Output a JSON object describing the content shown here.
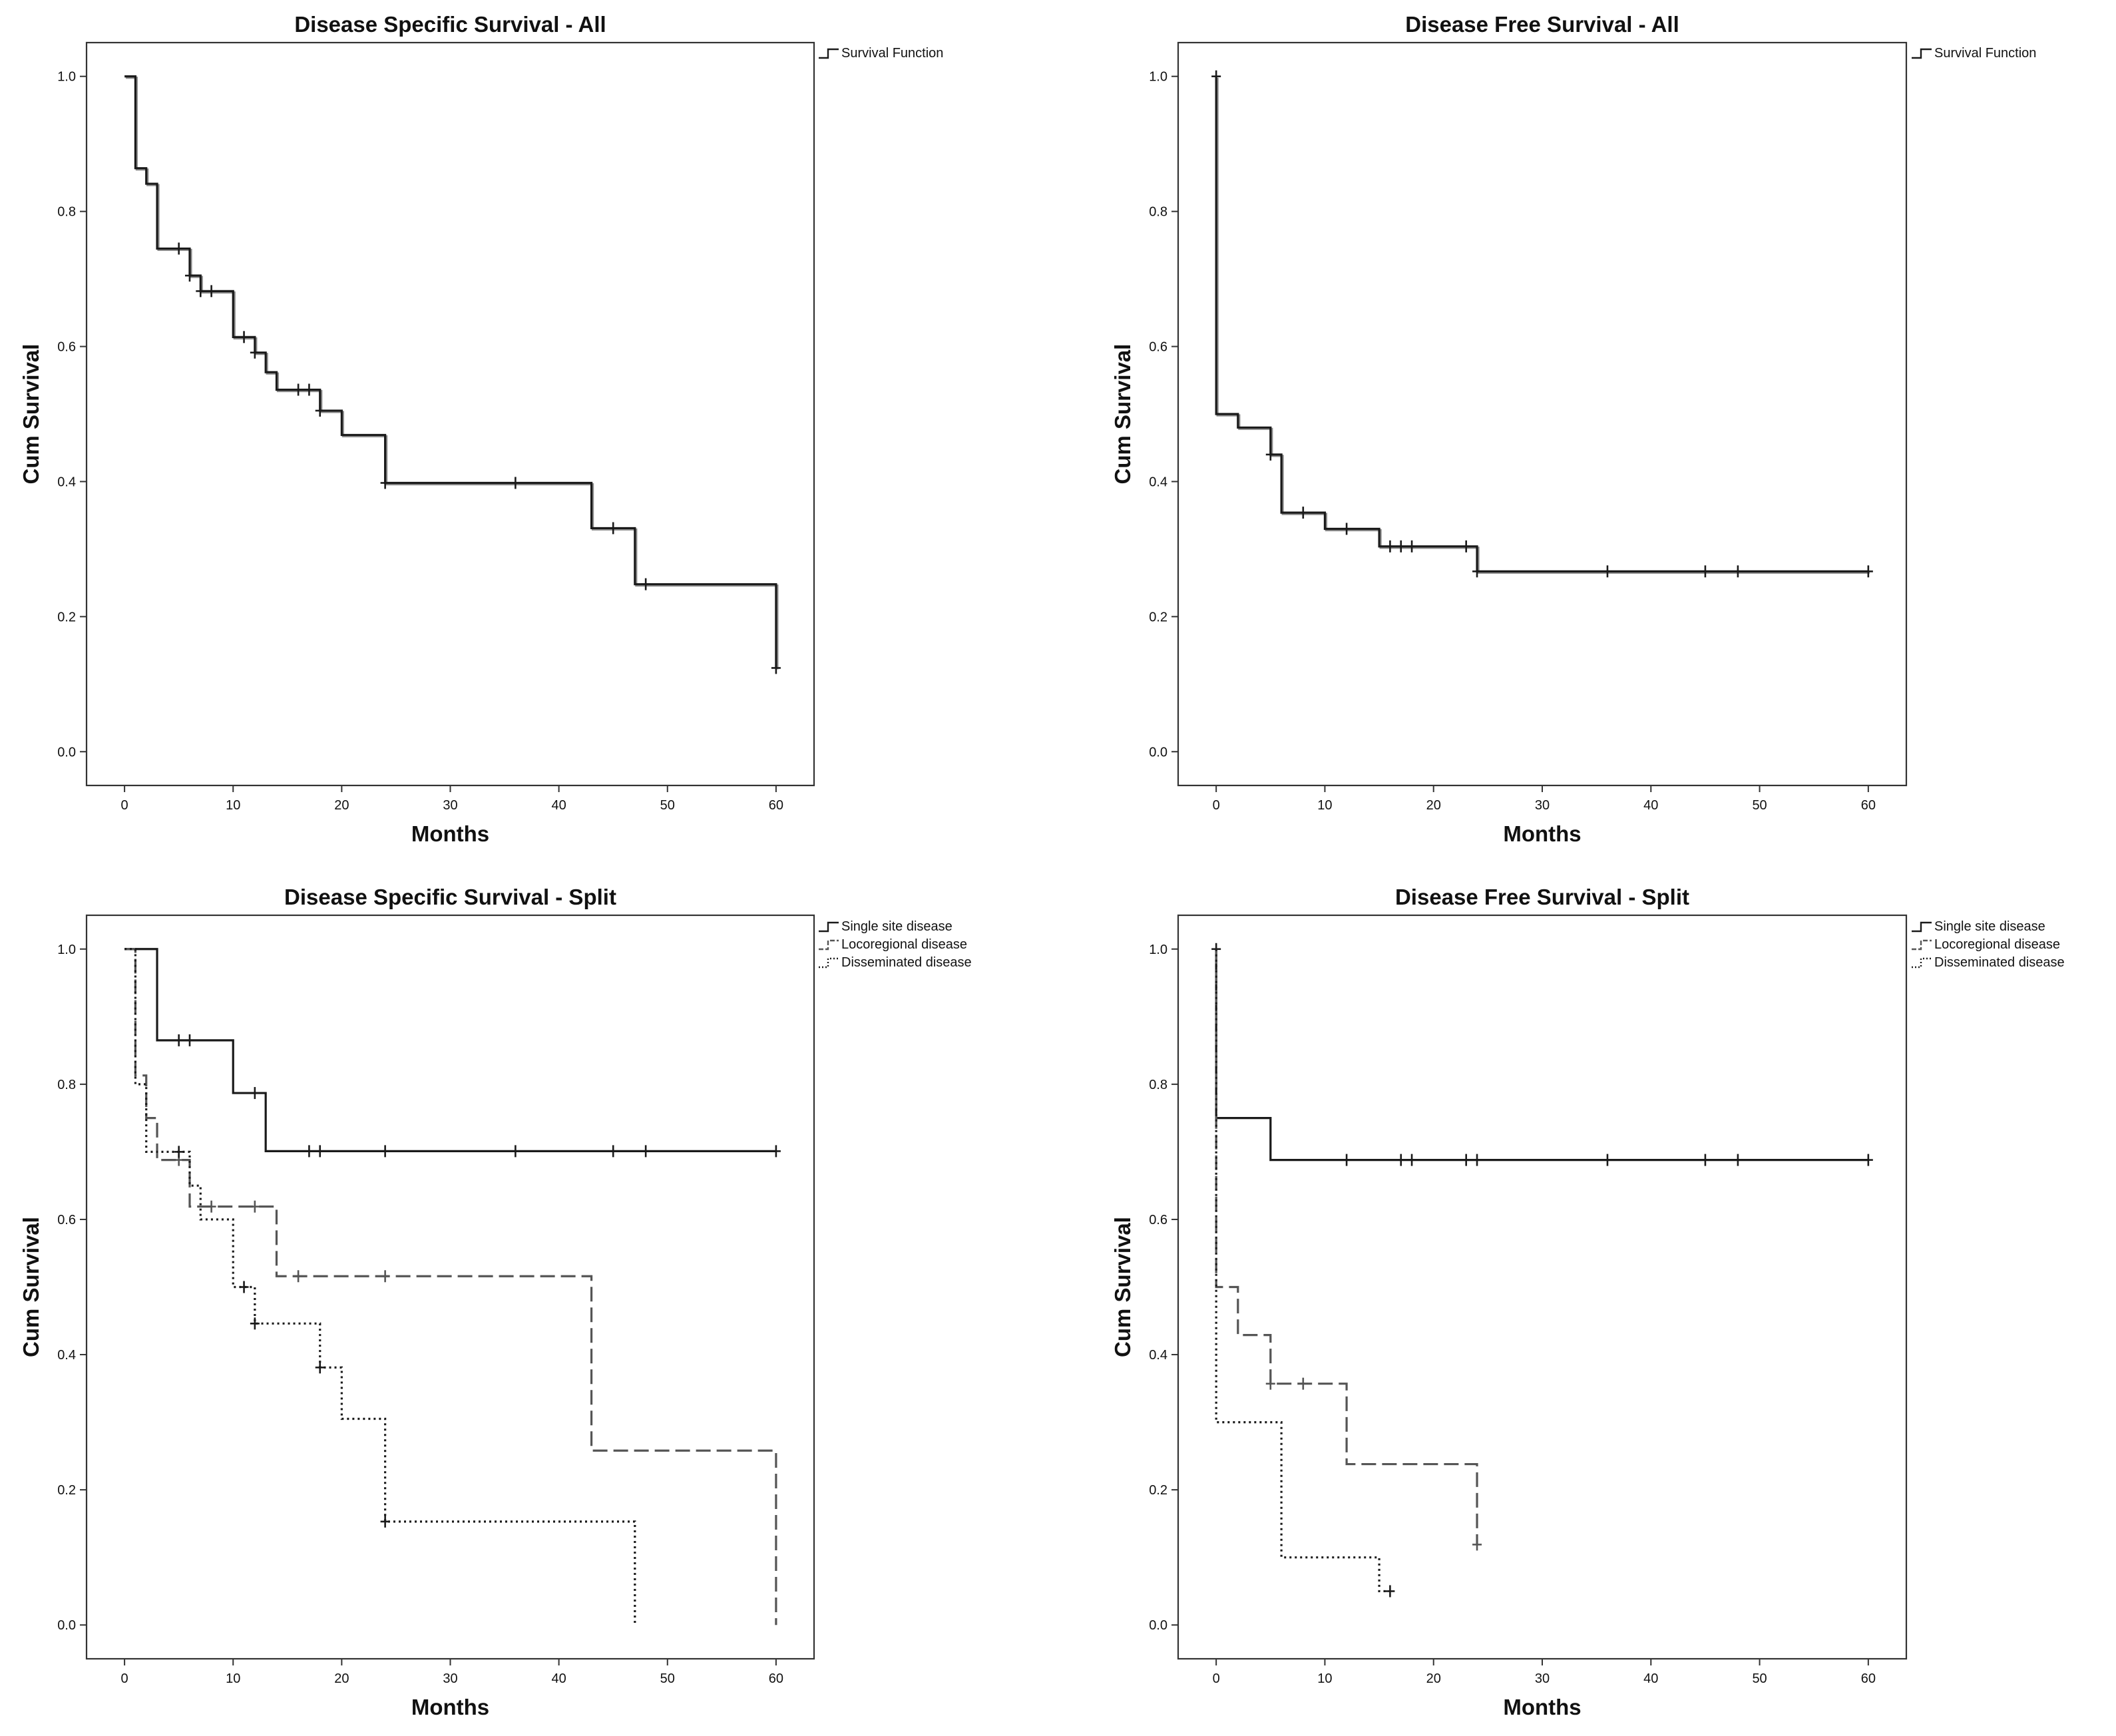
{
  "figure": {
    "description": "Four Kaplan-Meier survival plots"
  },
  "chart_data": [
    {
      "type": "line",
      "subtype": "kaplan-meier-step",
      "title": "Disease Specific Survival - All",
      "xlabel": "Months",
      "ylabel": "Cum Survival",
      "xlim": [
        -3.5,
        63.5
      ],
      "ylim": [
        -0.05,
        1.05
      ],
      "xticks": [
        0,
        10,
        20,
        30,
        40,
        50,
        60
      ],
      "yticks": [
        0.0,
        0.2,
        0.4,
        0.6,
        0.8,
        1.0
      ],
      "legend_position": "outside top-right",
      "series": [
        {
          "name": "Survival Function",
          "style": "solid",
          "color": "#1a1a1a",
          "shadow": "#8c8c8c",
          "steps": [
            [
              0,
              1.0
            ],
            [
              1,
              0.864
            ],
            [
              2,
              0.841
            ],
            [
              3,
              0.745
            ],
            [
              6,
              0.705
            ],
            [
              7,
              0.682
            ],
            [
              10,
              0.614
            ],
            [
              12,
              0.591
            ],
            [
              13,
              0.562
            ],
            [
              14,
              0.536
            ],
            [
              18,
              0.505
            ],
            [
              20,
              0.469
            ],
            [
              24,
              0.398
            ],
            [
              43,
              0.331
            ],
            [
              47,
              0.248
            ],
            [
              60,
              0.124
            ]
          ],
          "censored": [
            [
              5,
              0.745
            ],
            [
              6,
              0.705
            ],
            [
              7,
              0.682
            ],
            [
              8,
              0.682
            ],
            [
              11,
              0.614
            ],
            [
              12,
              0.591
            ],
            [
              16,
              0.536
            ],
            [
              17,
              0.536
            ],
            [
              18,
              0.505
            ],
            [
              24,
              0.398
            ],
            [
              36,
              0.398
            ],
            [
              45,
              0.331
            ],
            [
              48,
              0.248
            ],
            [
              60,
              0.124
            ]
          ]
        }
      ]
    },
    {
      "type": "line",
      "subtype": "kaplan-meier-step",
      "title": "Disease Free Survival - All",
      "xlabel": "Months",
      "ylabel": "Cum Survival",
      "xlim": [
        -3.5,
        63.5
      ],
      "ylim": [
        -0.05,
        1.05
      ],
      "xticks": [
        0,
        10,
        20,
        30,
        40,
        50,
        60
      ],
      "yticks": [
        0.0,
        0.2,
        0.4,
        0.6,
        0.8,
        1.0
      ],
      "legend_position": "outside top-right",
      "series": [
        {
          "name": "Survival Function",
          "style": "solid",
          "color": "#1a1a1a",
          "shadow": "#8c8c8c",
          "steps": [
            [
              0,
              1.0
            ],
            [
              0,
              0.5
            ],
            [
              2,
              0.48
            ],
            [
              5,
              0.44
            ],
            [
              6,
              0.354
            ],
            [
              10,
              0.33
            ],
            [
              15,
              0.304
            ],
            [
              24,
              0.267
            ],
            [
              60,
              0.267
            ]
          ],
          "censored": [
            [
              0,
              1.0
            ],
            [
              5,
              0.44
            ],
            [
              8,
              0.354
            ],
            [
              12,
              0.33
            ],
            [
              16,
              0.304
            ],
            [
              17,
              0.304
            ],
            [
              18,
              0.304
            ],
            [
              23,
              0.304
            ],
            [
              24,
              0.267
            ],
            [
              36,
              0.267
            ],
            [
              45,
              0.267
            ],
            [
              48,
              0.267
            ],
            [
              60,
              0.267
            ]
          ]
        }
      ]
    },
    {
      "type": "line",
      "subtype": "kaplan-meier-step",
      "title": "Disease Specific Survival - Split",
      "xlabel": "Months",
      "ylabel": "Cum Survival",
      "xlim": [
        -3.5,
        63.5
      ],
      "ylim": [
        -0.05,
        1.05
      ],
      "xticks": [
        0,
        10,
        20,
        30,
        40,
        50,
        60
      ],
      "yticks": [
        0.0,
        0.2,
        0.4,
        0.6,
        0.8,
        1.0
      ],
      "legend_position": "outside top-right",
      "series": [
        {
          "name": "Single site disease",
          "style": "solid",
          "color": "#1a1a1a",
          "steps": [
            [
              0,
              1.0
            ],
            [
              3,
              0.865
            ],
            [
              10,
              0.787
            ],
            [
              13,
              0.701
            ],
            [
              60,
              0.701
            ]
          ],
          "censored": [
            [
              5,
              0.865
            ],
            [
              6,
              0.865
            ],
            [
              12,
              0.787
            ],
            [
              17,
              0.701
            ],
            [
              18,
              0.701
            ],
            [
              24,
              0.701
            ],
            [
              36,
              0.701
            ],
            [
              45,
              0.701
            ],
            [
              48,
              0.701
            ],
            [
              60,
              0.701
            ]
          ]
        },
        {
          "name": "Locoregional disease",
          "style": "dashed",
          "color": "#555555",
          "steps": [
            [
              0,
              1.0
            ],
            [
              1,
              0.813
            ],
            [
              2,
              0.75
            ],
            [
              3,
              0.688
            ],
            [
              6,
              0.619
            ],
            [
              14,
              0.516
            ],
            [
              43,
              0.258
            ],
            [
              60,
              0.0
            ]
          ],
          "censored": [
            [
              5,
              0.688
            ],
            [
              8,
              0.619
            ],
            [
              12,
              0.619
            ],
            [
              16,
              0.516
            ],
            [
              24,
              0.516
            ]
          ]
        },
        {
          "name": "Disseminated disease",
          "style": "dotted",
          "color": "#1a1a1a",
          "steps": [
            [
              0,
              1.0
            ],
            [
              1,
              0.8
            ],
            [
              2,
              0.7
            ],
            [
              6,
              0.65
            ],
            [
              7,
              0.6
            ],
            [
              10,
              0.5
            ],
            [
              12,
              0.446
            ],
            [
              18,
              0.381
            ],
            [
              20,
              0.305
            ],
            [
              24,
              0.153
            ],
            [
              47,
              0.0
            ]
          ],
          "censored": [
            [
              5,
              0.7
            ],
            [
              11,
              0.5
            ],
            [
              12,
              0.446
            ],
            [
              18,
              0.381
            ],
            [
              24,
              0.153
            ]
          ]
        }
      ]
    },
    {
      "type": "line",
      "subtype": "kaplan-meier-step",
      "title": "Disease Free Survival - Split",
      "xlabel": "Months",
      "ylabel": "Cum Survival",
      "xlim": [
        -3.5,
        63.5
      ],
      "ylim": [
        -0.05,
        1.05
      ],
      "xticks": [
        0,
        10,
        20,
        30,
        40,
        50,
        60
      ],
      "yticks": [
        0.0,
        0.2,
        0.4,
        0.6,
        0.8,
        1.0
      ],
      "legend_position": "outside top-right",
      "series": [
        {
          "name": "Single site disease",
          "style": "solid",
          "color": "#1a1a1a",
          "steps": [
            [
              0,
              1.0
            ],
            [
              0,
              0.75
            ],
            [
              5,
              0.688
            ],
            [
              60,
              0.688
            ]
          ],
          "censored": [
            [
              0,
              1.0
            ],
            [
              12,
              0.688
            ],
            [
              17,
              0.688
            ],
            [
              18,
              0.688
            ],
            [
              23,
              0.688
            ],
            [
              24,
              0.688
            ],
            [
              36,
              0.688
            ],
            [
              45,
              0.688
            ],
            [
              48,
              0.688
            ],
            [
              60,
              0.688
            ]
          ]
        },
        {
          "name": "Locoregional disease",
          "style": "dashed",
          "color": "#555555",
          "steps": [
            [
              0,
              1.0
            ],
            [
              0,
              0.5
            ],
            [
              2,
              0.429
            ],
            [
              5,
              0.357
            ],
            [
              12,
              0.238
            ],
            [
              24,
              0.119
            ]
          ],
          "censored": [
            [
              5,
              0.357
            ],
            [
              8,
              0.357
            ],
            [
              24,
              0.119
            ]
          ]
        },
        {
          "name": "Disseminated disease",
          "style": "dotted",
          "color": "#1a1a1a",
          "steps": [
            [
              0,
              1.0
            ],
            [
              0,
              0.3
            ],
            [
              6,
              0.1
            ],
            [
              15,
              0.05
            ],
            [
              16,
              0.05
            ]
          ],
          "censored": [
            [
              16,
              0.05
            ]
          ]
        }
      ]
    }
  ]
}
